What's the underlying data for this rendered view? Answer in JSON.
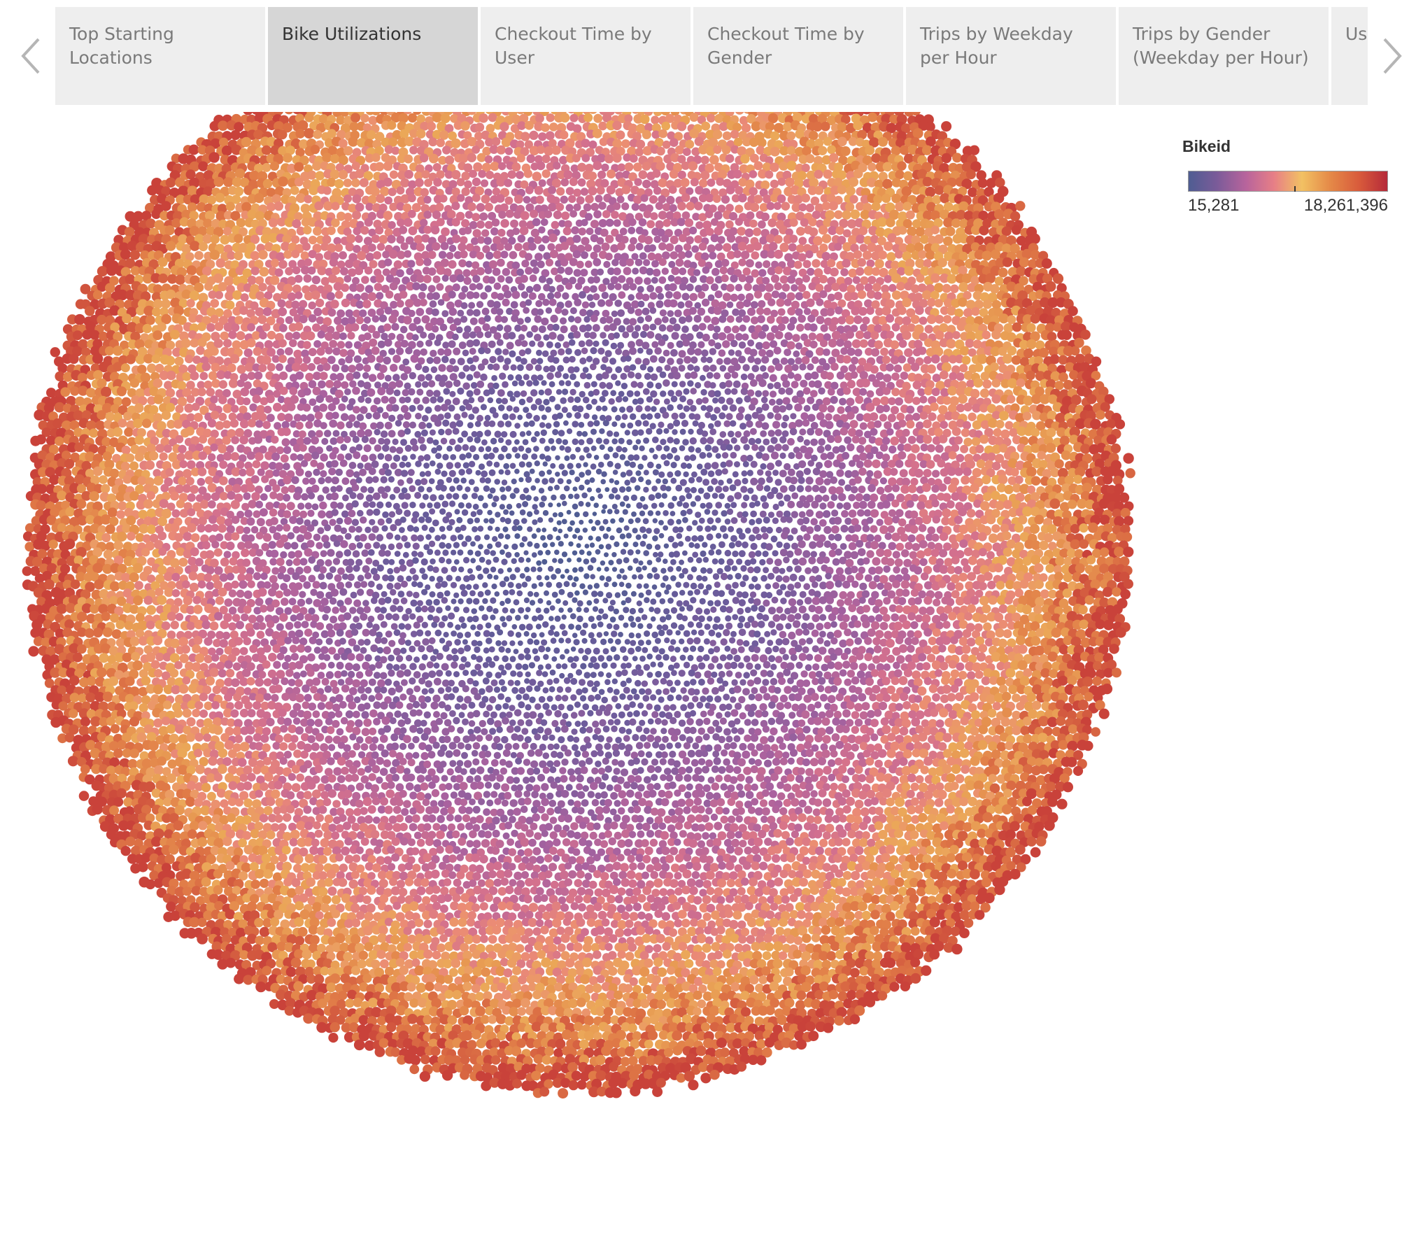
{
  "tabs": [
    {
      "label": "Top Starting Locations",
      "active": false
    },
    {
      "label": "Bike Utilizations",
      "active": true
    },
    {
      "label": "Checkout Time by User",
      "active": false
    },
    {
      "label": "Checkout Time by Gender",
      "active": false
    },
    {
      "label": "Trips by Weekday per Hour",
      "active": false
    },
    {
      "label": "Trips by Gender (Weekday per Hour)",
      "active": false
    },
    {
      "label": "User Trips by",
      "active": false
    }
  ],
  "nav": {
    "prev_icon": "chevron-left-icon",
    "next_icon": "chevron-right-icon"
  },
  "legend": {
    "title": "Bikeid",
    "min_label": "15,281",
    "max_label": "18,261,396",
    "min_value": 15281,
    "max_value": 18261396,
    "colors": [
      "#4f5d92",
      "#7a5b99",
      "#b8649c",
      "#e77f86",
      "#f2c163",
      "#e58a48",
      "#d85a3b",
      "#b52a3a"
    ]
  },
  "chart_data": {
    "type": "bubble",
    "measure": "Bikeid",
    "color_range": [
      15281,
      18261396
    ],
    "colors": {
      "center": "#4f5d92",
      "mid": "#c3689a",
      "outer": "#e8a24f",
      "edge": "#c63f38"
    }
  }
}
